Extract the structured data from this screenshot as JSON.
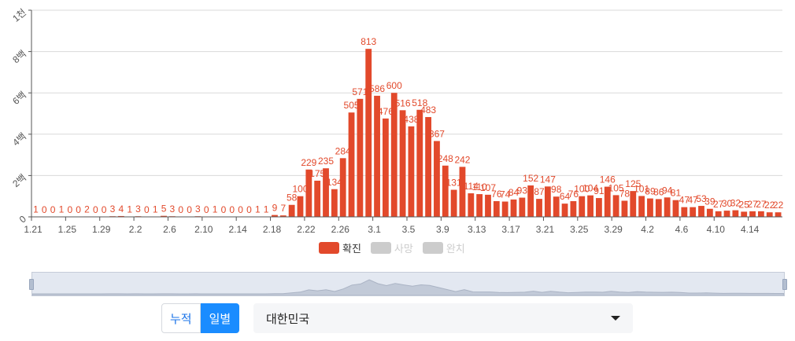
{
  "chart_data": {
    "type": "bar",
    "x": [
      "1.21",
      "1.22",
      "1.23",
      "1.24",
      "1.25",
      "1.26",
      "1.27",
      "1.28",
      "1.29",
      "1.30",
      "1.31",
      "2.1",
      "2.2",
      "2.3",
      "2.4",
      "2.5",
      "2.6",
      "2.7",
      "2.8",
      "2.9",
      "2.10",
      "2.11",
      "2.12",
      "2.13",
      "2.14",
      "2.15",
      "2.16",
      "2.17",
      "2.18",
      "2.19",
      "2.20",
      "2.21",
      "2.22",
      "2.23",
      "2.24",
      "2.25",
      "2.26",
      "2.27",
      "2.28",
      "2.29",
      "3.1",
      "3.2",
      "3.3",
      "3.4",
      "3.5",
      "3.6",
      "3.7",
      "3.8",
      "3.9",
      "3.10",
      "3.11",
      "3.12",
      "3.13",
      "3.14",
      "3.15",
      "3.16",
      "3.17",
      "3.18",
      "3.19",
      "3.20",
      "3.21",
      "3.22",
      "3.23",
      "3.24",
      "3.25",
      "3.26",
      "3.27",
      "3.28",
      "3.29",
      "3.30",
      "3.31",
      "4.1",
      "4.2",
      "4.3",
      "4.4",
      "4.5",
      "4.6",
      "4.7",
      "4.8",
      "4.9",
      "4.10",
      "4.11",
      "4.12",
      "4.13",
      "4.14",
      "4.15",
      "4.16",
      "4.17"
    ],
    "tick_labels": [
      "1.21",
      "1.25",
      "1.29",
      "2.2",
      "2.6",
      "2.10",
      "2.14",
      "2.18",
      "2.22",
      "2.26",
      "3.1",
      "3.5",
      "3.9",
      "3.13",
      "3.17",
      "3.21",
      "3.25",
      "3.29",
      "4.2",
      "4.6",
      "4.10",
      "4.14"
    ],
    "tick_every": 4,
    "series": [
      {
        "name": "확진",
        "values": [
          1,
          0,
          0,
          1,
          0,
          0,
          2,
          0,
          0,
          3,
          4,
          1,
          3,
          0,
          1,
          5,
          3,
          0,
          0,
          3,
          0,
          1,
          0,
          0,
          0,
          0,
          1,
          1,
          9,
          7,
          58,
          100,
          229,
          175,
          235,
          134,
          284,
          505,
          571,
          813,
          586,
          476,
          600,
          516,
          438,
          518,
          483,
          367,
          248,
          131,
          242,
          114,
          110,
          107,
          76,
          74,
          84,
          93,
          152,
          87,
          147,
          98,
          64,
          76,
          100,
          104,
          91,
          146,
          105,
          78,
          125,
          101,
          89,
          86,
          94,
          81,
          47,
          47,
          53,
          39,
          27,
          30,
          32,
          25,
          27,
          27,
          22,
          22
        ],
        "labels": [
          "1",
          "0",
          "0",
          "1",
          "0",
          "0",
          "2",
          "0",
          "0",
          "3",
          "4",
          "1",
          "3",
          "0",
          "1",
          "5",
          "3",
          "0",
          "0",
          "3",
          "0",
          "1",
          "0",
          "0",
          "0",
          "0",
          "1",
          "1",
          "9",
          "7",
          "58",
          "100",
          "229",
          "175",
          "235",
          "134",
          "284",
          "505",
          "571",
          "813",
          "586",
          "476",
          "600",
          "516",
          "438",
          "518",
          "483",
          "367",
          "248",
          "131",
          "242",
          "114",
          "110",
          "107",
          "76",
          "74",
          "84",
          "93",
          "152",
          "87",
          "147",
          "98",
          "64",
          "76",
          "100",
          "104",
          "91",
          "146",
          "105",
          "78",
          "125",
          "101",
          "89",
          "86",
          "94",
          "81",
          "47",
          "47",
          "53",
          "39",
          "27",
          "30",
          "32",
          "25",
          "27",
          "27",
          "22",
          "22"
        ]
      }
    ],
    "yticks": [
      {
        "value": 0,
        "label": "0"
      },
      {
        "value": 200,
        "label": "2백"
      },
      {
        "value": 400,
        "label": "4백"
      },
      {
        "value": 600,
        "label": "6백"
      },
      {
        "value": 800,
        "label": "8백"
      },
      {
        "value": 1000,
        "label": "1천"
      }
    ],
    "ylim": [
      0,
      1000
    ],
    "grid": true,
    "colors": {
      "bar": "#e2492b",
      "label": "#e2492b",
      "grid": "#d9d9d9",
      "axis": "#555555"
    }
  },
  "legend": {
    "items": [
      {
        "label": "확진",
        "color": "#e2492b",
        "text_color": "#333333"
      },
      {
        "label": "사망",
        "color": "#cccccc",
        "text_color": "#cccccc"
      },
      {
        "label": "완치",
        "color": "#cccccc",
        "text_color": "#cccccc"
      }
    ]
  },
  "controls": {
    "mode_cumulative": "누적",
    "mode_daily": "일별",
    "region_selected": "대한민국"
  }
}
